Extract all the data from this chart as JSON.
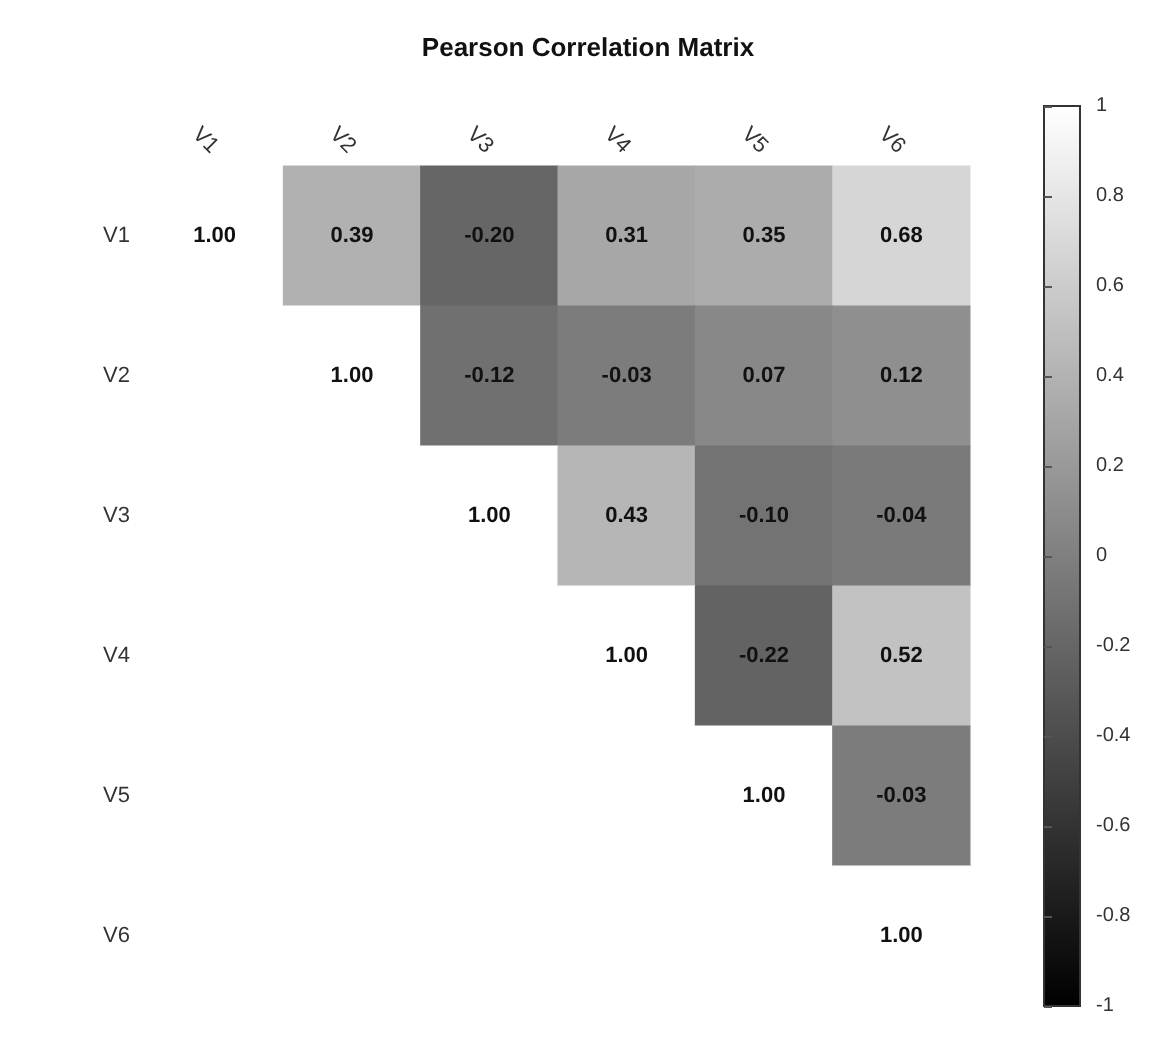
{
  "chart_data": {
    "type": "heatmap",
    "title": "Pearson Correlation Matrix",
    "categories": [
      "V1",
      "V2",
      "V3",
      "V4",
      "V5",
      "V6"
    ],
    "y_categories": [
      "V1",
      "V2",
      "V3",
      "V4",
      "V5",
      "V6"
    ],
    "cells": [
      [
        1,
        0.39,
        -0.2,
        0.31,
        0.35,
        0.68
      ],
      [
        null,
        1,
        -0.12,
        -0.03,
        0.07,
        0.12
      ],
      [
        null,
        null,
        1,
        0.43,
        -0.1,
        -0.04
      ],
      [
        null,
        null,
        null,
        1,
        -0.22,
        0.52
      ],
      [
        null,
        null,
        null,
        null,
        1,
        -0.03
      ],
      [
        null,
        null,
        null,
        null,
        null,
        1
      ]
    ],
    "cell_labels": [
      [
        "1.00",
        "0.39",
        "-0.20",
        "0.31",
        "0.35",
        "0.68"
      ],
      [
        null,
        "1.00",
        "-0.12",
        "-0.03",
        "0.07",
        "0.12"
      ],
      [
        null,
        null,
        "1.00",
        "0.43",
        "-0.10",
        "-0.04"
      ],
      [
        null,
        null,
        null,
        "1.00",
        "-0.22",
        "0.52"
      ],
      [
        null,
        null,
        null,
        null,
        "1.00",
        "-0.03"
      ],
      [
        null,
        null,
        null,
        null,
        null,
        "1.00"
      ]
    ],
    "clim": [
      -1,
      1
    ],
    "cticks": [
      -1,
      -0.8,
      -0.6,
      -0.4,
      -0.2,
      0,
      0.2,
      0.4,
      0.6,
      0.8,
      1
    ]
  }
}
